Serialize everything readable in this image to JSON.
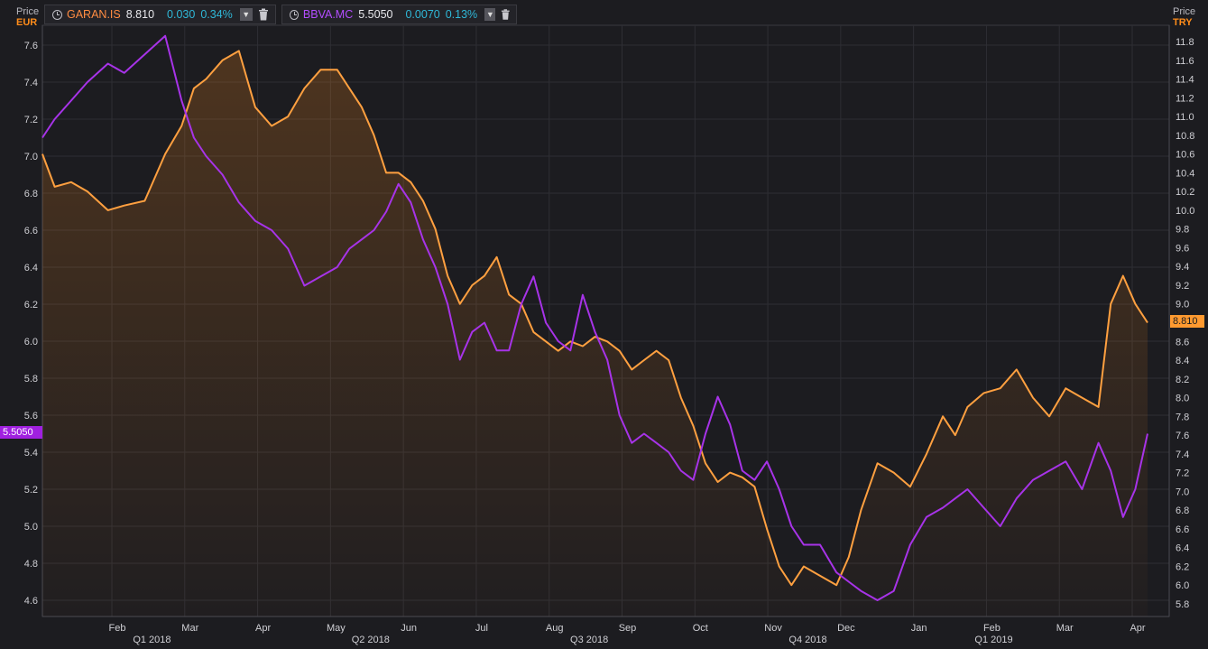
{
  "left_axis": {
    "title": "Price",
    "currency": "EUR",
    "color": "#ff8c1a"
  },
  "right_axis": {
    "title": "Price",
    "currency": "TRY",
    "color": "#ff8c1a"
  },
  "instruments": [
    {
      "symbol": "GARAN.IS",
      "price": "8.810",
      "change": "0.030",
      "change_pct": "0.34%",
      "color": "#ff8c42",
      "icon": "clock-icon"
    },
    {
      "symbol": "BBVA.MC",
      "price": "5.5050",
      "change": "0.0070",
      "change_pct": "0.13%",
      "color": "#b34dff",
      "icon": "clock-icon"
    }
  ],
  "last_price_flags": {
    "left": "5.5050",
    "right": "8.810"
  },
  "colors": {
    "background": "#1c1c20",
    "grid": "#2e2e34",
    "garan": "#ffa040",
    "bbva": "#a733e8",
    "label": "#cfcfd4"
  },
  "chart_data": {
    "type": "line",
    "grid": true,
    "x_month_labels": [
      "Feb",
      "Mar",
      "Apr",
      "May",
      "Jun",
      "Jul",
      "Aug",
      "Sep",
      "Oct",
      "Nov",
      "Dec",
      "Jan",
      "Feb",
      "Mar",
      "Apr"
    ],
    "x_quarter_labels": [
      "Q1 2018",
      "Q2 2018",
      "Q3 2018",
      "Q4 2018",
      "Q1 2019"
    ],
    "left_axis": {
      "unit": "EUR",
      "ticks": [
        4.6,
        4.8,
        5.0,
        5.2,
        5.4,
        5.6,
        5.8,
        6.0,
        6.2,
        6.4,
        6.6,
        6.8,
        7.0,
        7.2,
        7.4,
        7.6
      ],
      "range": [
        4.5,
        7.67
      ]
    },
    "right_axis": {
      "unit": "TRY",
      "ticks": [
        5.8,
        6.0,
        6.2,
        6.4,
        6.6,
        6.8,
        7.0,
        7.2,
        7.4,
        7.6,
        7.8,
        8.0,
        8.2,
        8.4,
        8.6,
        8.8,
        9.0,
        9.2,
        9.4,
        9.6,
        9.8,
        10.0,
        10.2,
        10.4,
        10.6,
        10.8,
        11.0,
        11.2,
        11.4,
        11.6,
        11.8
      ],
      "range": [
        5.7,
        11.86
      ]
    },
    "series": [
      {
        "name": "GARAN.IS",
        "axis": "right",
        "area": true,
        "x": [
          0,
          0.15,
          0.35,
          0.55,
          0.8,
          1.0,
          1.25,
          1.5,
          1.7,
          1.85,
          2.0,
          2.2,
          2.4,
          2.6,
          2.8,
          3.0,
          3.2,
          3.4,
          3.6,
          3.75,
          3.9,
          4.05,
          4.2,
          4.35,
          4.5,
          4.65,
          4.8,
          4.95,
          5.1,
          5.25,
          5.4,
          5.55,
          5.7,
          5.85,
          6.0,
          6.15,
          6.3,
          6.45,
          6.6,
          6.75,
          6.9,
          7.05,
          7.2,
          7.35,
          7.5,
          7.65,
          7.8,
          7.95,
          8.1,
          8.25,
          8.4,
          8.55,
          8.7,
          8.85,
          9.0,
          9.15,
          9.3,
          9.5,
          9.7,
          9.85,
          10.0,
          10.2,
          10.4,
          10.6,
          10.8,
          11.0,
          11.15,
          11.3,
          11.5,
          11.7,
          11.9,
          12.1,
          12.3,
          12.5,
          12.7,
          12.9,
          13.05,
          13.2,
          13.35,
          13.5
        ],
        "values": [
          10.6,
          10.25,
          10.3,
          10.2,
          10.0,
          10.05,
          10.1,
          10.6,
          10.9,
          11.3,
          11.4,
          11.6,
          11.7,
          11.1,
          10.9,
          11.0,
          11.3,
          11.5,
          11.5,
          11.3,
          11.1,
          10.8,
          10.4,
          10.4,
          10.3,
          10.1,
          9.8,
          9.3,
          9.0,
          9.2,
          9.3,
          9.5,
          9.1,
          9.0,
          8.7,
          8.6,
          8.5,
          8.6,
          8.55,
          8.65,
          8.6,
          8.5,
          8.3,
          8.4,
          8.5,
          8.4,
          8.0,
          7.7,
          7.3,
          7.1,
          7.2,
          7.15,
          7.05,
          6.6,
          6.2,
          6.0,
          6.2,
          6.1,
          6.0,
          6.3,
          6.8,
          7.3,
          7.2,
          7.05,
          7.4,
          7.8,
          7.6,
          7.9,
          8.05,
          8.1,
          8.3,
          8.0,
          7.8,
          8.1,
          8.0,
          7.9,
          9.0,
          9.3,
          9.0,
          8.8
        ]
      },
      {
        "name": "BBVA.MC",
        "axis": "left",
        "area": false,
        "x": [
          0,
          0.15,
          0.35,
          0.55,
          0.8,
          1.0,
          1.25,
          1.5,
          1.7,
          1.85,
          2.0,
          2.2,
          2.4,
          2.6,
          2.8,
          3.0,
          3.2,
          3.4,
          3.6,
          3.75,
          3.9,
          4.05,
          4.2,
          4.35,
          4.5,
          4.65,
          4.8,
          4.95,
          5.1,
          5.25,
          5.4,
          5.55,
          5.7,
          5.85,
          6.0,
          6.15,
          6.3,
          6.45,
          6.6,
          6.75,
          6.9,
          7.05,
          7.2,
          7.35,
          7.5,
          7.65,
          7.8,
          7.95,
          8.1,
          8.25,
          8.4,
          8.55,
          8.7,
          8.85,
          9.0,
          9.15,
          9.3,
          9.5,
          9.7,
          9.85,
          10.0,
          10.2,
          10.4,
          10.6,
          10.8,
          11.0,
          11.15,
          11.3,
          11.5,
          11.7,
          11.9,
          12.1,
          12.3,
          12.5,
          12.7,
          12.9,
          13.05,
          13.2,
          13.35,
          13.5
        ],
        "values": [
          7.1,
          7.2,
          7.3,
          7.4,
          7.5,
          7.45,
          7.55,
          7.65,
          7.3,
          7.1,
          7.0,
          6.9,
          6.75,
          6.65,
          6.6,
          6.5,
          6.3,
          6.35,
          6.4,
          6.5,
          6.55,
          6.6,
          6.7,
          6.85,
          6.75,
          6.55,
          6.4,
          6.2,
          5.9,
          6.05,
          6.1,
          5.95,
          5.95,
          6.2,
          6.35,
          6.1,
          6.0,
          5.95,
          6.25,
          6.05,
          5.9,
          5.6,
          5.45,
          5.5,
          5.45,
          5.4,
          5.3,
          5.25,
          5.5,
          5.7,
          5.55,
          5.3,
          5.25,
          5.35,
          5.2,
          5.0,
          4.9,
          4.9,
          4.75,
          4.7,
          4.65,
          4.6,
          4.65,
          4.9,
          5.05,
          5.1,
          5.15,
          5.2,
          5.1,
          5.0,
          5.15,
          5.25,
          5.3,
          5.35,
          5.2,
          5.45,
          5.3,
          5.05,
          5.2,
          5.5
        ]
      }
    ]
  }
}
